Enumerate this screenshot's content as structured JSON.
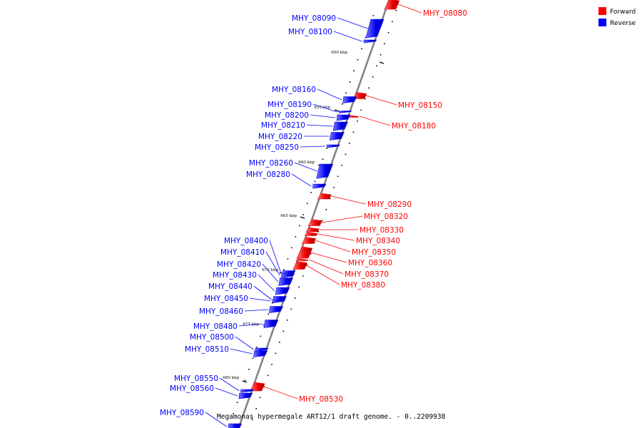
{
  "colors": {
    "forward": "#ff0000",
    "reverse": "#0000ff",
    "backbone": "#808080"
  },
  "legend": [
    {
      "label": "Forward",
      "strand": "forward"
    },
    {
      "label": "Reverse",
      "strand": "reverse"
    }
  ],
  "caption": "Megamonas hypermegale ART12/1 draft genome. - 0..2209938",
  "scale_ticks": [
    "650 kbp",
    "655 kbp",
    "660 kbp",
    "665 kbp",
    "670 kbp",
    "675 kbp",
    "680 kbp"
  ],
  "genes": [
    {
      "id": "MHY_08080",
      "strand": "forward"
    },
    {
      "id": "MHY_08090",
      "strand": "reverse"
    },
    {
      "id": "MHY_08100",
      "strand": "reverse"
    },
    {
      "id": "MHY_08150",
      "strand": "forward"
    },
    {
      "id": "MHY_08160",
      "strand": "reverse"
    },
    {
      "id": "MHY_08180",
      "strand": "forward"
    },
    {
      "id": "MHY_08190",
      "strand": "reverse"
    },
    {
      "id": "MHY_08200",
      "strand": "reverse"
    },
    {
      "id": "MHY_08210",
      "strand": "reverse"
    },
    {
      "id": "MHY_08220",
      "strand": "reverse"
    },
    {
      "id": "MHY_08250",
      "strand": "reverse"
    },
    {
      "id": "MHY_08260",
      "strand": "reverse"
    },
    {
      "id": "MHY_08280",
      "strand": "reverse"
    },
    {
      "id": "MHY_08290",
      "strand": "forward"
    },
    {
      "id": "MHY_08320",
      "strand": "forward"
    },
    {
      "id": "MHY_08330",
      "strand": "forward"
    },
    {
      "id": "MHY_08340",
      "strand": "forward"
    },
    {
      "id": "MHY_08350",
      "strand": "forward"
    },
    {
      "id": "MHY_08360",
      "strand": "forward"
    },
    {
      "id": "MHY_08370",
      "strand": "forward"
    },
    {
      "id": "MHY_08380",
      "strand": "forward"
    },
    {
      "id": "MHY_08400",
      "strand": "reverse"
    },
    {
      "id": "MHY_08410",
      "strand": "reverse"
    },
    {
      "id": "MHY_08420",
      "strand": "reverse"
    },
    {
      "id": "MHY_08430",
      "strand": "reverse"
    },
    {
      "id": "MHY_08440",
      "strand": "reverse"
    },
    {
      "id": "MHY_08450",
      "strand": "reverse"
    },
    {
      "id": "MHY_08460",
      "strand": "reverse"
    },
    {
      "id": "MHY_08480",
      "strand": "reverse"
    },
    {
      "id": "MHY_08500",
      "strand": "reverse"
    },
    {
      "id": "MHY_08510",
      "strand": "reverse"
    },
    {
      "id": "MHY_08530",
      "strand": "forward"
    },
    {
      "id": "MHY_08550",
      "strand": "reverse"
    },
    {
      "id": "MHY_08560",
      "strand": "reverse"
    },
    {
      "id": "MHY_08590",
      "strand": "reverse"
    }
  ]
}
